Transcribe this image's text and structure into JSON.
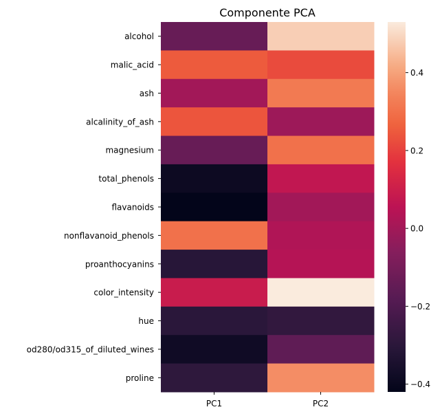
{
  "chart_data": {
    "type": "heatmap",
    "title": "Componente PCA",
    "xlabel": "",
    "ylabel": "",
    "columns": [
      "PC1",
      "PC2"
    ],
    "rows": [
      "alcohol",
      "malic_acid",
      "ash",
      "alcalinity_of_ash",
      "magnesium",
      "total_phenols",
      "flavanoids",
      "nonflavanoid_phenols",
      "proanthocyanins",
      "color_intensity",
      "hue",
      "od280/od315_of_diluted_wines",
      "proline"
    ],
    "values": [
      [
        -0.14,
        0.48
      ],
      [
        0.25,
        0.22
      ],
      [
        0.0,
        0.32
      ],
      [
        0.24,
        -0.01
      ],
      [
        -0.14,
        0.3
      ],
      [
        -0.39,
        0.07
      ],
      [
        -0.42,
        -0.0
      ],
      [
        0.3,
        0.03
      ],
      [
        -0.31,
        0.04
      ],
      [
        0.09,
        0.53
      ],
      [
        -0.3,
        -0.28
      ],
      [
        -0.38,
        -0.16
      ],
      [
        -0.29,
        0.36
      ]
    ],
    "colormap": "rocket",
    "vmin": -0.42,
    "vmax": 0.53,
    "colorbar_ticks": [
      -0.4,
      -0.2,
      0.0,
      0.2,
      0.4
    ],
    "colorbar_tick_labels": [
      "−0.4",
      "−0.2",
      "0.0",
      "0.2",
      "0.4"
    ]
  }
}
